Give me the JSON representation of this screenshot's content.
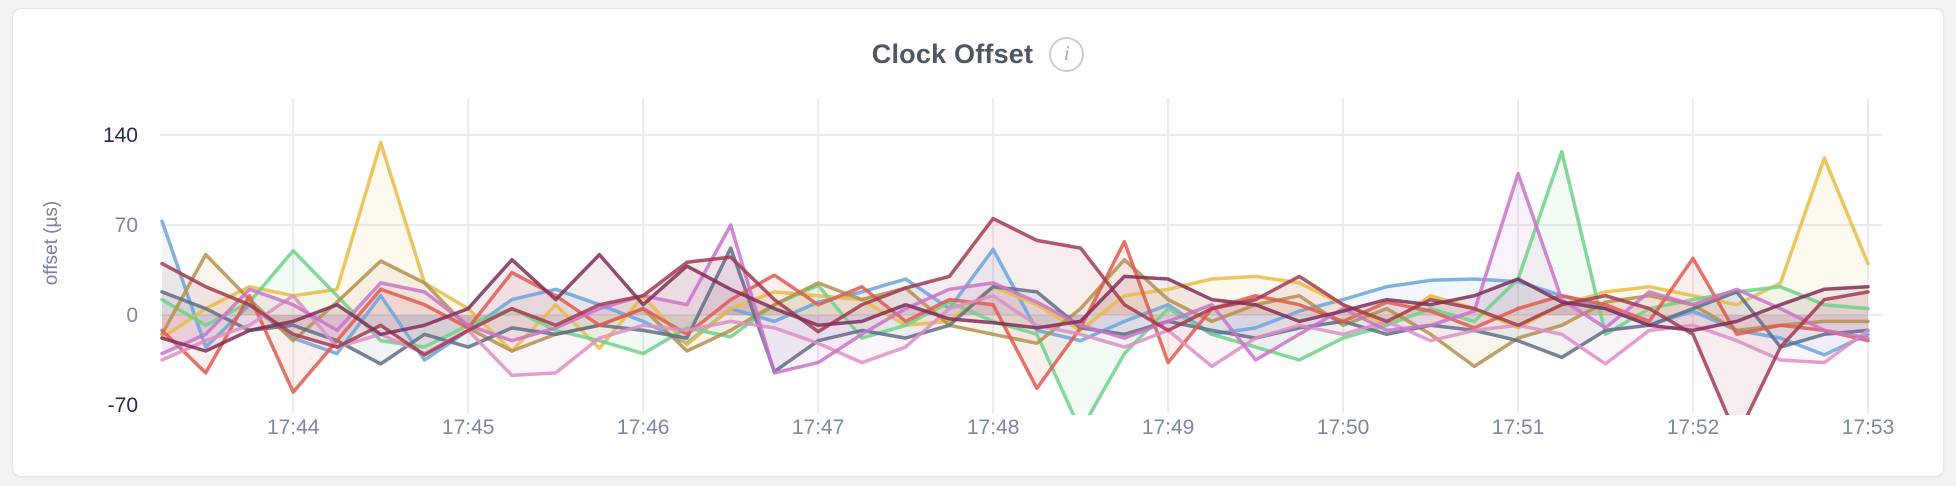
{
  "header": {
    "title": "Clock Offset",
    "info_icon": "info-icon",
    "info_glyph": "i"
  },
  "colors": {
    "page_background": "#f2f3f5",
    "card_background": "#ffffff",
    "card_border": "#e4e5e8",
    "gridline": "#ececee",
    "tick_muted": "#7b87a3",
    "tick_strong": "#1f2d52",
    "title_text": "#4d5766"
  },
  "chart_data": {
    "type": "line",
    "title": "Clock Offset",
    "xlabel": "",
    "ylabel": "offset (µs)",
    "ylim": [
      -70,
      140
    ],
    "grid": "on",
    "legend": "none",
    "x_start_time": "17:43:15",
    "x_step_seconds": 15,
    "x_total_seconds": 585,
    "x_tick_labels": [
      "17:44",
      "17:45",
      "17:46",
      "17:47",
      "17:48",
      "17:49",
      "17:50",
      "17:51",
      "17:52",
      "17:53"
    ],
    "x_tick_seconds": [
      45,
      105,
      165,
      225,
      285,
      345,
      405,
      465,
      525,
      585
    ],
    "y_ticks": [
      {
        "label": "140",
        "value": 140,
        "strong": true,
        "grid": true
      },
      {
        "label": "70",
        "value": 70,
        "strong": false,
        "grid": true
      },
      {
        "label": "0",
        "value": 0,
        "strong": false,
        "grid": true
      },
      {
        "label": "-70",
        "value": -70,
        "strong": true,
        "grid": false
      }
    ],
    "series": [
      {
        "id": "blue",
        "color": "#6BA3DD",
        "values": [
          73,
          -25,
          8,
          -18,
          -30,
          15,
          -35,
          -12,
          12,
          20,
          8,
          -5,
          -22,
          5,
          -5,
          10,
          18,
          28,
          5,
          51,
          -12,
          -20,
          -5,
          8,
          -15,
          -10,
          3,
          12,
          22,
          27,
          28,
          26,
          15,
          5,
          -8,
          3,
          -12,
          -18,
          -31,
          -15
        ]
      },
      {
        "id": "gold",
        "color": "#E8BC46",
        "values": [
          -18,
          5,
          22,
          15,
          20,
          134,
          25,
          5,
          -28,
          8,
          -26,
          15,
          -23,
          5,
          18,
          15,
          12,
          -8,
          -5,
          22,
          8,
          -12,
          15,
          20,
          28,
          30,
          25,
          8,
          -8,
          15,
          5,
          -10,
          8,
          18,
          22,
          15,
          8,
          25,
          122,
          40
        ]
      },
      {
        "id": "green",
        "color": "#6FD189",
        "values": [
          12,
          -8,
          10,
          50,
          15,
          -20,
          -25,
          -8,
          5,
          -12,
          -20,
          -30,
          -10,
          -17,
          8,
          23,
          -18,
          -8,
          10,
          -5,
          -15,
          -90,
          -30,
          5,
          -15,
          -25,
          -35,
          -18,
          -8,
          5,
          -5,
          28,
          127,
          -15,
          5,
          12,
          18,
          22,
          8,
          5
        ]
      },
      {
        "id": "khaki",
        "color": "#B3914D",
        "values": [
          -15,
          47,
          12,
          -20,
          10,
          42,
          25,
          -10,
          -28,
          -15,
          -8,
          5,
          -28,
          -12,
          8,
          25,
          12,
          21,
          -8,
          -15,
          -22,
          5,
          43,
          12,
          -5,
          8,
          15,
          -8,
          5,
          -15,
          -40,
          -18,
          -8,
          10,
          15,
          8,
          -12,
          -8,
          -5,
          -5
        ]
      },
      {
        "id": "slate",
        "color": "#5F6D88",
        "values": [
          18,
          5,
          -12,
          -8,
          -20,
          -38,
          -15,
          -25,
          -10,
          -15,
          -8,
          -12,
          -18,
          52,
          -44,
          -20,
          -12,
          -18,
          -8,
          22,
          18,
          -10,
          -15,
          -5,
          -12,
          -18,
          -10,
          -5,
          -15,
          -8,
          -12,
          -20,
          -33,
          -12,
          -8,
          5,
          18,
          -25,
          -15,
          -12
        ]
      },
      {
        "id": "red",
        "color": "#E05A4F",
        "values": [
          -12,
          -45,
          15,
          -60,
          -20,
          20,
          8,
          -10,
          33,
          15,
          -8,
          5,
          -15,
          12,
          31,
          8,
          22,
          -5,
          12,
          8,
          -57,
          -10,
          57,
          -37,
          5,
          15,
          8,
          -5,
          10,
          3,
          -10,
          5,
          15,
          8,
          -5,
          44,
          -15,
          -8,
          -12,
          -20
        ]
      },
      {
        "id": "pink",
        "color": "#DE8EC4",
        "values": [
          -35,
          -20,
          -8,
          15,
          -25,
          -15,
          -30,
          -12,
          -47,
          -45,
          -18,
          -8,
          -12,
          -5,
          -10,
          -22,
          -37,
          -25,
          5,
          15,
          -8,
          -15,
          -25,
          -12,
          -40,
          -18,
          -8,
          -15,
          -5,
          -20,
          -12,
          -8,
          -15,
          -38,
          -12,
          -8,
          -20,
          -35,
          -37,
          -12
        ]
      },
      {
        "id": "orchid",
        "color": "#C973C9",
        "values": [
          -30,
          -15,
          20,
          8,
          -12,
          25,
          18,
          -8,
          -20,
          -10,
          5,
          15,
          8,
          70,
          -45,
          -37,
          -15,
          5,
          20,
          25,
          10,
          -8,
          -18,
          -5,
          8,
          -35,
          -15,
          5,
          -12,
          -8,
          3,
          110,
          12,
          -10,
          18,
          8,
          20,
          5,
          -12,
          -18
        ]
      },
      {
        "id": "maroon",
        "color": "#A23B50",
        "values": [
          40,
          22,
          8,
          -15,
          -25,
          -8,
          -31,
          -12,
          5,
          -8,
          8,
          15,
          41,
          45,
          12,
          -13,
          8,
          21,
          30,
          75,
          58,
          52,
          8,
          -12,
          5,
          12,
          30,
          8,
          -5,
          12,
          5,
          -8,
          8,
          15,
          5,
          -15,
          -95,
          -25,
          12,
          18
        ]
      },
      {
        "id": "plum",
        "color": "#802E58",
        "values": [
          -18,
          -28,
          -12,
          -5,
          8,
          -15,
          -8,
          5,
          43,
          12,
          47,
          8,
          38,
          20,
          5,
          -8,
          -5,
          8,
          -3,
          -6,
          -10,
          -5,
          30,
          28,
          12,
          8,
          -5,
          3,
          12,
          8,
          15,
          28,
          10,
          5,
          -8,
          -12,
          -5,
          8,
          20,
          22
        ]
      }
    ]
  }
}
